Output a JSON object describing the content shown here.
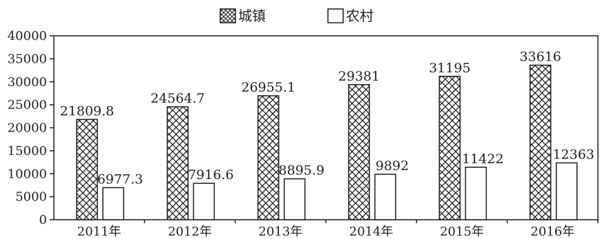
{
  "chart_data": {
    "type": "bar",
    "categories": [
      "2011年",
      "2012年",
      "2013年",
      "2014年",
      "2015年",
      "2016年"
    ],
    "series": [
      {
        "name": "城镇",
        "values": [
          21809.8,
          24564.7,
          26955.1,
          29381,
          31195,
          33616
        ],
        "pattern": "crosshatch"
      },
      {
        "name": "农村",
        "values": [
          6977.3,
          7916.6,
          8895.9,
          9892,
          11422,
          12363
        ],
        "pattern": "none"
      }
    ],
    "value_labels": {
      "城镇": [
        "21809.8",
        "24564.7",
        "26955.1",
        "29381",
        "31195",
        "33616"
      ],
      "农村": [
        "6977.3",
        "7916.6",
        "8895.9",
        "9892",
        "11422",
        "12363"
      ]
    },
    "y_ticks": [
      "0",
      "5000",
      "10000",
      "15000",
      "20000",
      "25000",
      "30000",
      "35000",
      "40000"
    ],
    "ylim": [
      0,
      40000
    ],
    "grid": false,
    "legend_position": "top-center",
    "colors": {
      "bar_stroke": "#1a1a1a",
      "bar_fill": "#ffffff",
      "axis": "#1a1a1a"
    }
  }
}
